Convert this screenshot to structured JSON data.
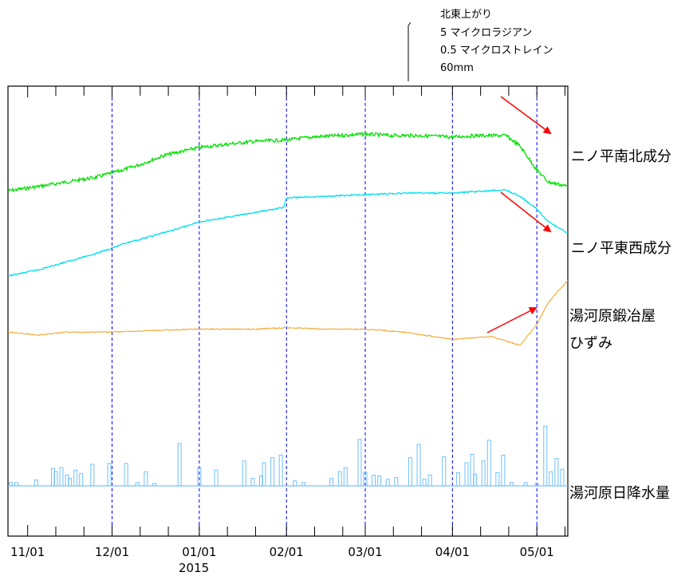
{
  "chart_data": {
    "type": "line",
    "x_ticks": [
      "11/01",
      "12/01",
      "01/01",
      "02/01",
      "03/01",
      "04/01",
      "05/01"
    ],
    "x_year_label": "2015",
    "x_range": [
      "2014-10-25",
      "2015-05-12"
    ],
    "scale_legend": {
      "direction": "北東上がり",
      "tilt_scale": "5 マイクロラジアン",
      "strain_scale": "0.5 マイクロストレイン",
      "rain_scale": "60mm"
    },
    "series": [
      {
        "name": "ニノ平南北成分",
        "color": "#00e000",
        "x": [
          "2014-10-25",
          "2014-11-05",
          "2014-11-15",
          "2014-11-25",
          "2014-12-03",
          "2014-12-10",
          "2014-12-20",
          "2015-01-01",
          "2015-01-10",
          "2015-01-20",
          "2015-02-01",
          "2015-02-10",
          "2015-02-20",
          "2015-03-01",
          "2015-03-10",
          "2015-03-20",
          "2015-04-01",
          "2015-04-10",
          "2015-04-20",
          "2015-04-25",
          "2015-05-01",
          "2015-05-05",
          "2015-05-12"
        ],
        "y": [
          0.0,
          0.3,
          0.6,
          0.9,
          1.3,
          1.7,
          2.4,
          2.9,
          3.1,
          3.3,
          3.4,
          3.6,
          3.7,
          3.8,
          3.7,
          3.7,
          3.6,
          3.7,
          3.7,
          3.0,
          1.4,
          0.6,
          0.3
        ]
      },
      {
        "name": "ニノ平東西成分",
        "color": "#00e0f0",
        "x": [
          "2014-10-25",
          "2014-11-05",
          "2014-11-15",
          "2014-11-25",
          "2014-12-05",
          "2014-12-15",
          "2014-12-25",
          "2015-01-01",
          "2015-01-15",
          "2015-01-31",
          "2015-02-01",
          "2015-02-15",
          "2015-03-01",
          "2015-03-15",
          "2015-04-01",
          "2015-04-10",
          "2015-04-20",
          "2015-04-25",
          "2015-05-01",
          "2015-05-05",
          "2015-05-12"
        ],
        "y": [
          0.0,
          0.4,
          0.9,
          1.4,
          2.0,
          2.5,
          3.0,
          3.4,
          3.8,
          4.3,
          4.9,
          5.0,
          5.1,
          5.2,
          5.2,
          5.3,
          5.4,
          5.0,
          4.2,
          3.4,
          2.7
        ]
      },
      {
        "name": "湯河原鍛冶屋 ひずみ",
        "color": "#f0a020",
        "x": [
          "2014-10-25",
          "2014-11-05",
          "2014-11-15",
          "2014-12-01",
          "2014-12-15",
          "2015-01-01",
          "2015-01-20",
          "2015-02-01",
          "2015-02-15",
          "2015-03-01",
          "2015-03-15",
          "2015-04-01",
          "2015-04-15",
          "2015-04-25",
          "2015-05-01",
          "2015-05-05",
          "2015-05-12"
        ],
        "y": [
          0.0,
          -0.02,
          0.0,
          0.0,
          0.01,
          0.02,
          0.02,
          0.03,
          0.02,
          0.02,
          0.0,
          -0.05,
          -0.03,
          -0.09,
          0.05,
          0.2,
          0.35
        ]
      }
    ],
    "rain_bars": {
      "name": "湯河原日降水量",
      "unit": "mm",
      "color": "#70c0ff",
      "x": [
        "2014-10-26",
        "2014-10-28",
        "2014-11-04",
        "2014-11-10",
        "2014-11-11",
        "2014-11-13",
        "2014-11-15",
        "2014-11-16",
        "2014-11-18",
        "2014-11-20",
        "2014-11-24",
        "2014-11-30",
        "2014-12-06",
        "2014-12-10",
        "2014-12-13",
        "2014-12-16",
        "2014-12-25",
        "2015-01-01",
        "2015-01-07",
        "2015-01-17",
        "2015-01-20",
        "2015-01-23",
        "2015-01-24",
        "2015-01-27",
        "2015-01-30",
        "2015-02-04",
        "2015-02-07",
        "2015-02-17",
        "2015-02-20",
        "2015-02-22",
        "2015-02-27",
        "2015-03-01",
        "2015-03-04",
        "2015-03-06",
        "2015-03-09",
        "2015-03-12",
        "2015-03-17",
        "2015-03-20",
        "2015-03-22",
        "2015-03-24",
        "2015-03-29",
        "2015-04-03",
        "2015-04-06",
        "2015-04-08",
        "2015-04-09",
        "2015-04-12",
        "2015-04-14",
        "2015-04-17",
        "2015-04-19",
        "2015-04-22",
        "2015-04-27",
        "2015-05-01",
        "2015-05-04",
        "2015-05-06",
        "2015-05-08",
        "2015-05-10"
      ],
      "y": [
        4,
        4,
        7,
        21,
        17,
        22,
        13,
        9,
        19,
        15,
        26,
        27,
        27,
        4,
        17,
        3,
        51,
        22,
        19,
        30,
        9,
        12,
        28,
        34,
        37,
        6,
        4,
        9,
        17,
        22,
        56,
        16,
        13,
        12,
        8,
        10,
        34,
        50,
        8,
        13,
        35,
        16,
        28,
        38,
        14,
        30,
        55,
        16,
        37,
        4,
        4,
        3,
        72,
        17,
        33,
        20
      ]
    },
    "ylim": {
      "ns_tilt": [
        -1,
        7
      ],
      "ew_tilt": [
        -2,
        7.5
      ],
      "strain": [
        -0.75,
        0.45
      ],
      "rain": [
        0,
        75
      ]
    }
  }
}
